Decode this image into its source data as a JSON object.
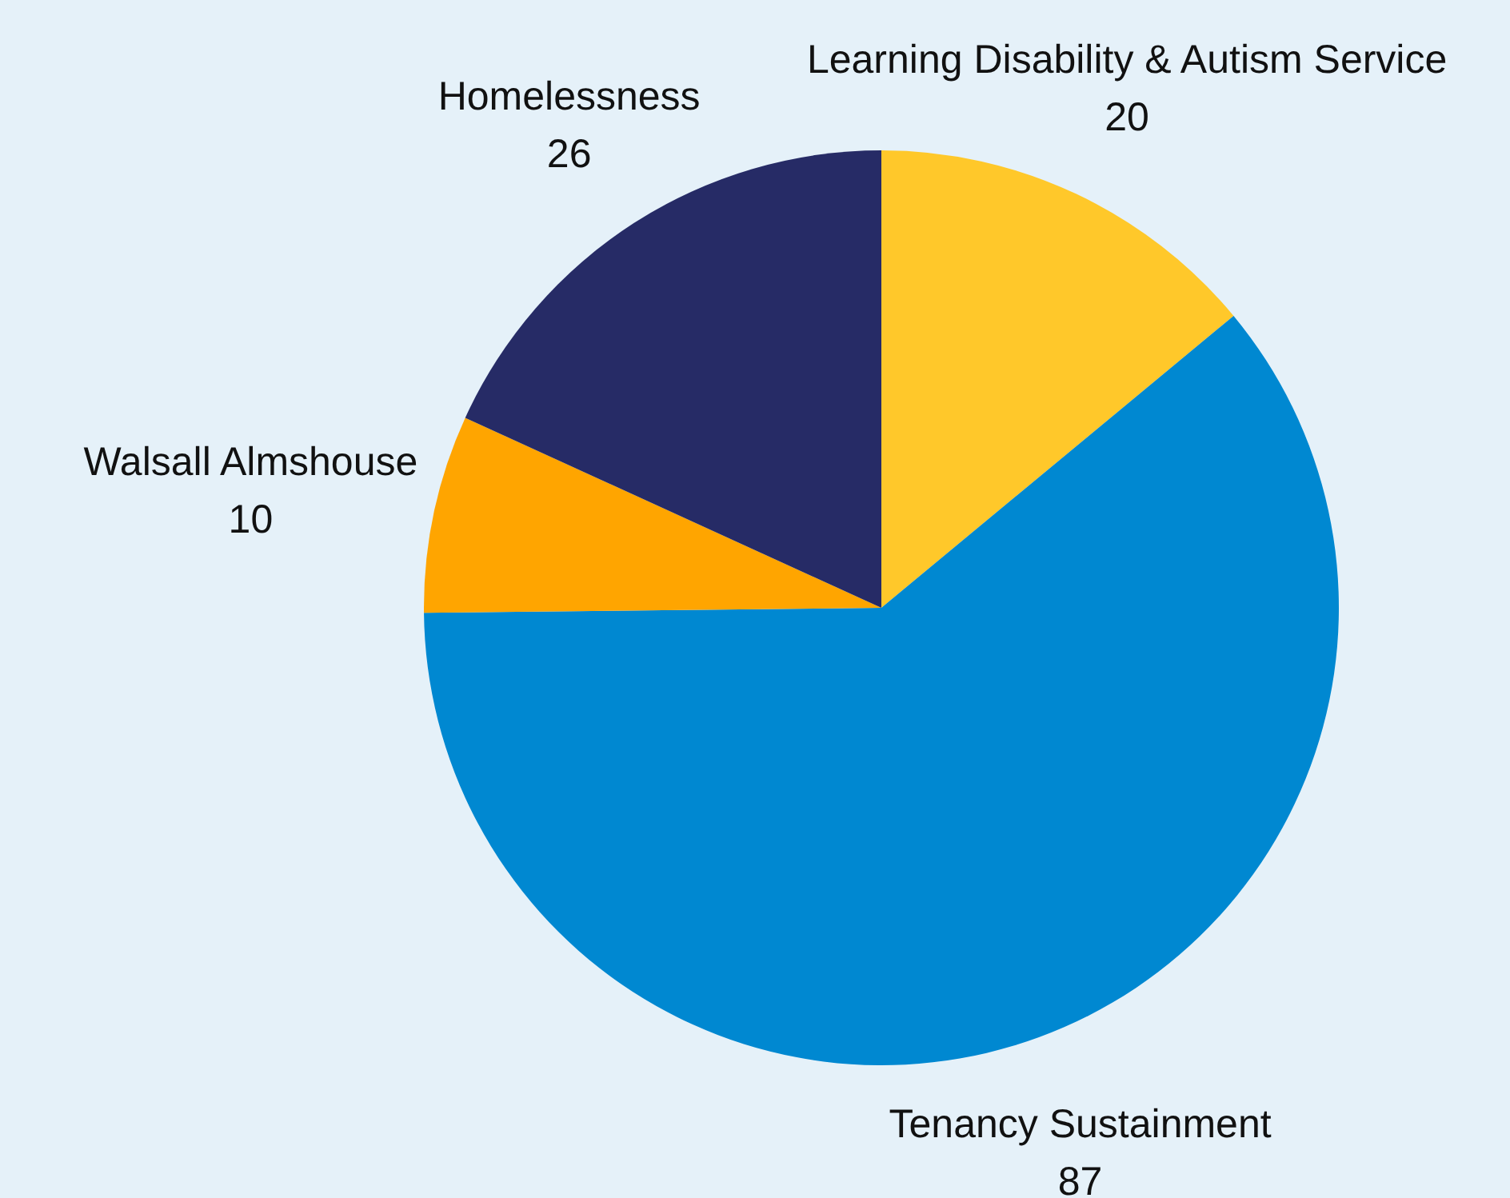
{
  "chart_data": {
    "type": "pie",
    "categories": [
      "Learning Disability & Autism Service",
      "Tenancy Sustainment",
      "Walsall Almshouse",
      "Homelessness"
    ],
    "values": [
      20,
      87,
      10,
      26
    ],
    "colors": [
      "#ffc82a",
      "#0088d1",
      "#ffa500",
      "#262b66"
    ],
    "data_labels": true
  }
}
